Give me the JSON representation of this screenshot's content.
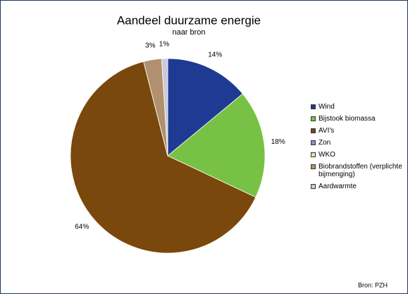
{
  "chart_data": {
    "type": "pie",
    "title": "Aandeel duurzame energie",
    "subtitle": "naar bron",
    "categories": [
      "Wind",
      "Bijstook biomassa",
      "AVI's",
      "Zon",
      "WKO",
      "Biobrandstoffen (verplichte bijmenging)",
      "Aardwarmte"
    ],
    "values": [
      14,
      18,
      64,
      0,
      0,
      3,
      1
    ],
    "value_labels": [
      "14%",
      "18%",
      "64%",
      null,
      null,
      "3%",
      "1%"
    ],
    "colors": [
      "#1f3a93",
      "#77c244",
      "#7a480c",
      "#8e8ec8",
      "#cfeaa8",
      "#b0906e",
      "#c9c9d9"
    ],
    "legend": "right",
    "source": "Bron: PZH"
  }
}
